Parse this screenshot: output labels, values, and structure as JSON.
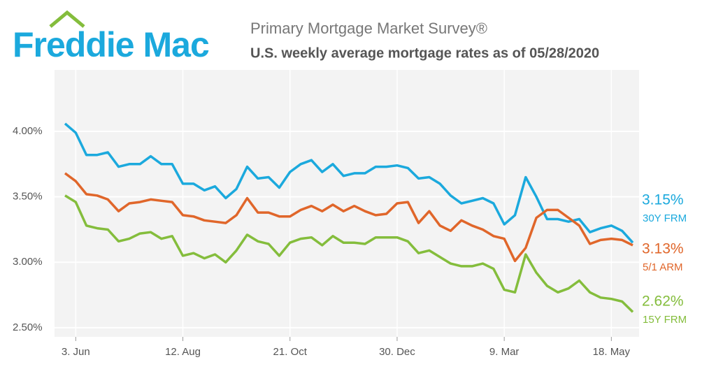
{
  "logo": "Freddie Mac",
  "chart_data": {
    "type": "line",
    "title": "Primary Mortgage Market Survey®",
    "subtitle": "U.S. weekly average mortgage rates as of 05/28/2020",
    "categories": [
      null,
      "3. Jun",
      null,
      null,
      null,
      null,
      null,
      null,
      null,
      null,
      null,
      "12. Aug",
      null,
      null,
      null,
      null,
      null,
      null,
      null,
      null,
      null,
      "21. Oct",
      null,
      null,
      null,
      null,
      null,
      null,
      null,
      null,
      null,
      "30. Dec",
      null,
      null,
      null,
      null,
      null,
      null,
      null,
      null,
      null,
      "9. Mar",
      null,
      null,
      null,
      null,
      null,
      null,
      null,
      null,
      null,
      "18. May",
      null,
      null
    ],
    "ylim": [
      2.43,
      4.47
    ],
    "yticks": [
      {
        "value": 2.5,
        "label": "2.50%"
      },
      {
        "value": 3,
        "label": "3.00%"
      },
      {
        "value": 3.5,
        "label": "3.50%"
      },
      {
        "value": 4,
        "label": "4.00%"
      }
    ],
    "grid": true,
    "series": [
      {
        "name": "30Y FRM",
        "color": "#1ba9dd",
        "values": [
          4.06,
          3.99,
          3.82,
          3.82,
          3.84,
          3.73,
          3.75,
          3.75,
          3.81,
          3.75,
          3.75,
          3.6,
          3.6,
          3.55,
          3.58,
          3.49,
          3.56,
          3.73,
          3.64,
          3.65,
          3.57,
          3.69,
          3.75,
          3.78,
          3.69,
          3.75,
          3.66,
          3.68,
          3.68,
          3.73,
          3.73,
          3.74,
          3.72,
          3.64,
          3.65,
          3.6,
          3.51,
          3.45,
          3.47,
          3.49,
          3.45,
          3.29,
          3.36,
          3.65,
          3.5,
          3.33,
          3.33,
          3.31,
          3.33,
          3.23,
          3.26,
          3.28,
          3.24,
          3.15
        ],
        "value_labels": [
          null,
          null,
          null,
          null,
          null,
          null,
          null,
          null,
          null,
          null,
          null,
          null,
          null,
          null,
          null,
          null,
          null,
          null,
          null,
          null,
          null,
          null,
          null,
          null,
          null,
          null,
          null,
          null,
          null,
          null,
          null,
          null,
          null,
          null,
          null,
          null,
          null,
          null,
          null,
          null,
          null,
          null,
          null,
          null,
          null,
          null,
          null,
          null,
          null,
          null,
          null,
          null,
          null,
          "3.15%"
        ]
      },
      {
        "name": "5/1 ARM",
        "color": "#e0662a",
        "values": [
          3.68,
          3.62,
          3.52,
          3.51,
          3.48,
          3.39,
          3.45,
          3.46,
          3.48,
          3.47,
          3.46,
          3.36,
          3.35,
          3.32,
          3.31,
          3.3,
          3.36,
          3.49,
          3.38,
          3.38,
          3.35,
          3.35,
          3.4,
          3.43,
          3.39,
          3.44,
          3.39,
          3.43,
          3.39,
          3.36,
          3.37,
          3.45,
          3.46,
          3.3,
          3.39,
          3.28,
          3.24,
          3.32,
          3.28,
          3.25,
          3.2,
          3.18,
          3.01,
          3.11,
          3.34,
          3.4,
          3.4,
          3.34,
          3.28,
          3.14,
          3.17,
          3.18,
          3.17,
          3.13
        ],
        "value_labels": [
          null,
          null,
          null,
          null,
          null,
          null,
          null,
          null,
          null,
          null,
          null,
          null,
          null,
          null,
          null,
          null,
          null,
          null,
          null,
          null,
          null,
          null,
          null,
          null,
          null,
          null,
          null,
          null,
          null,
          null,
          null,
          null,
          null,
          null,
          null,
          null,
          null,
          null,
          null,
          null,
          null,
          null,
          null,
          null,
          null,
          null,
          null,
          null,
          null,
          null,
          null,
          null,
          null,
          "3.13%"
        ]
      },
      {
        "name": "15Y FRM",
        "color": "#84bd3c",
        "values": [
          3.51,
          3.46,
          3.28,
          3.26,
          3.25,
          3.16,
          3.18,
          3.22,
          3.23,
          3.18,
          3.2,
          3.05,
          3.07,
          3.03,
          3.06,
          3.0,
          3.09,
          3.21,
          3.16,
          3.14,
          3.05,
          3.15,
          3.18,
          3.19,
          3.13,
          3.2,
          3.15,
          3.15,
          3.14,
          3.19,
          3.19,
          3.19,
          3.16,
          3.07,
          3.09,
          3.04,
          2.99,
          2.97,
          2.97,
          2.99,
          2.95,
          2.79,
          2.77,
          3.06,
          2.92,
          2.82,
          2.77,
          2.8,
          2.86,
          2.77,
          2.73,
          2.72,
          2.7,
          2.62
        ],
        "value_labels": [
          null,
          null,
          null,
          null,
          null,
          null,
          null,
          null,
          null,
          null,
          null,
          null,
          null,
          null,
          null,
          null,
          null,
          null,
          null,
          null,
          null,
          null,
          null,
          null,
          null,
          null,
          null,
          null,
          null,
          null,
          null,
          null,
          null,
          null,
          null,
          null,
          null,
          null,
          null,
          null,
          null,
          null,
          null,
          null,
          null,
          null,
          null,
          null,
          null,
          null,
          null,
          null,
          null,
          "2.62%"
        ]
      }
    ]
  }
}
